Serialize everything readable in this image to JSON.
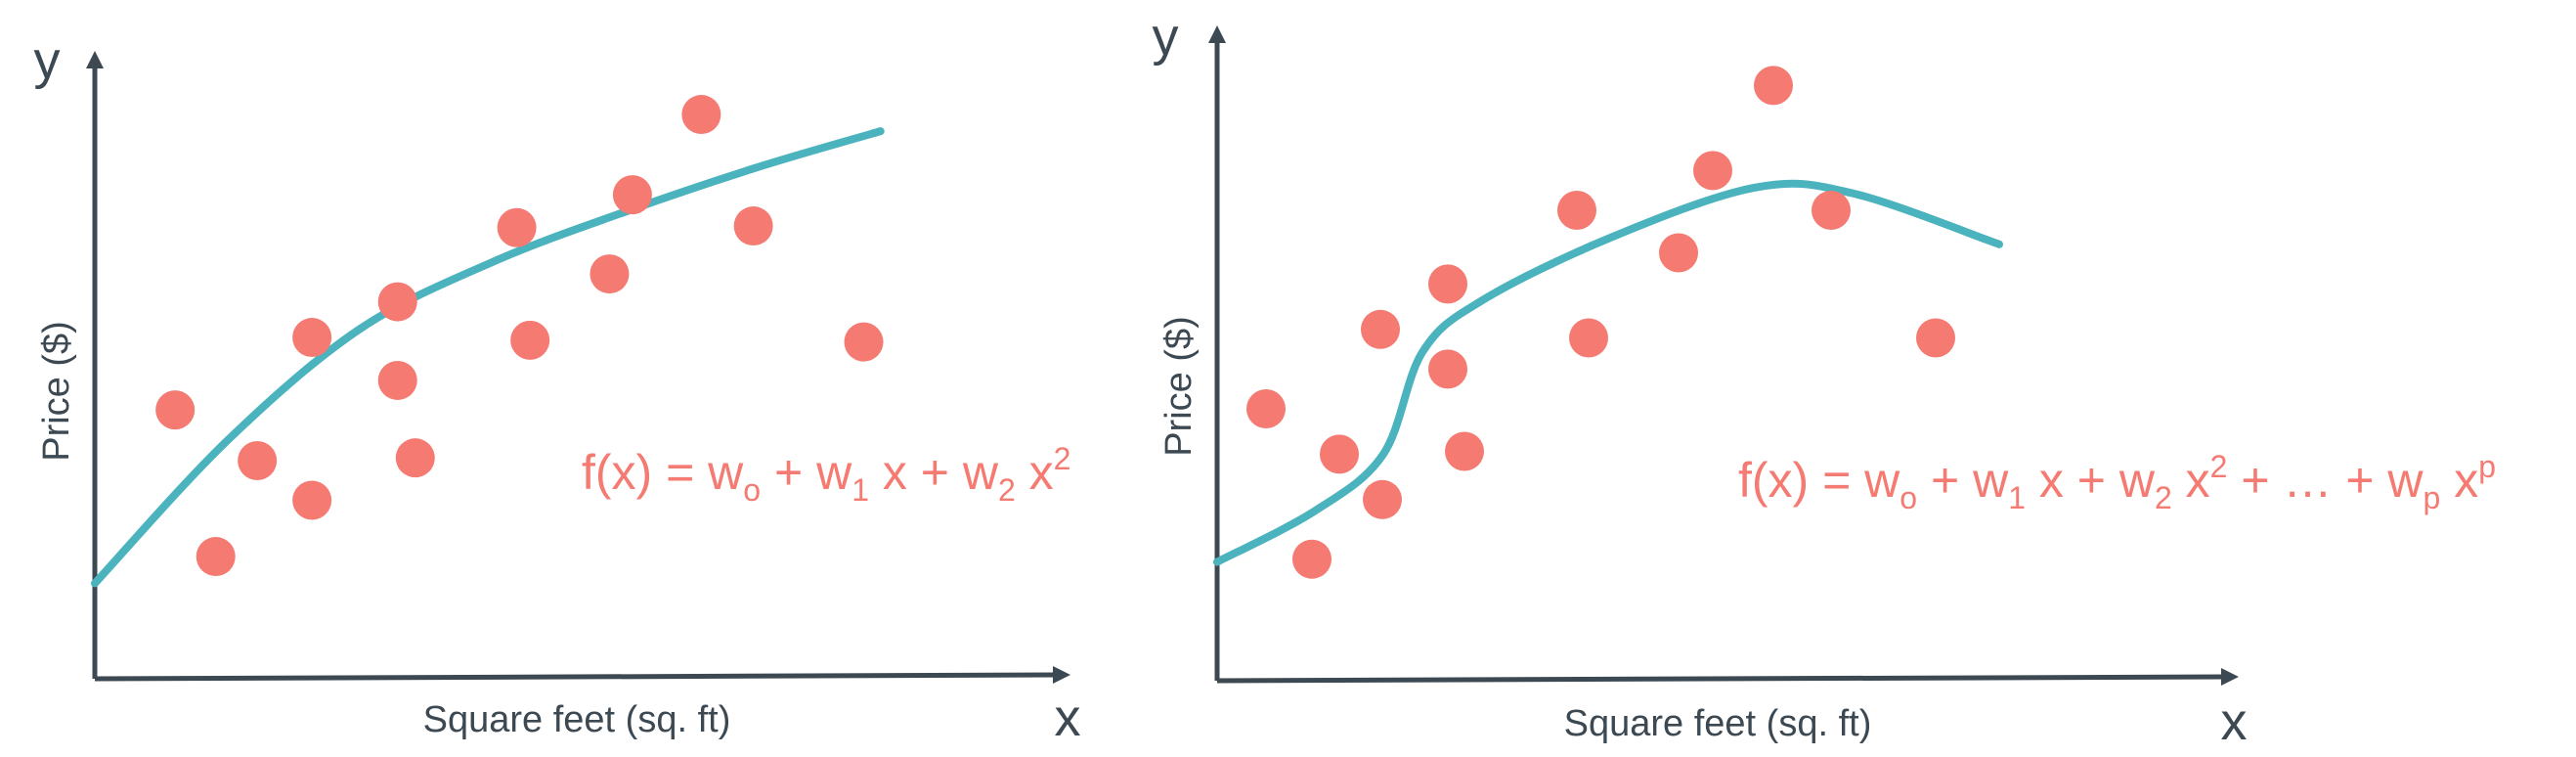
{
  "colors": {
    "axis": "#3c4852",
    "point": "#f47a72",
    "curve": "#4ab3bd",
    "formula": "#f47a72"
  },
  "chart_data": [
    {
      "type": "scatter",
      "title": "",
      "xlabel": "Square feet (sq. ft)",
      "ylabel": "Price ($)",
      "x_axis_letter": "x",
      "y_axis_letter": "y",
      "xlim": [
        0,
        100
      ],
      "ylim": [
        0,
        100
      ],
      "grid": false,
      "formula": {
        "prefix": "f(x) = w",
        "terms": [
          {
            "sub": "o",
            "text": " + w"
          },
          {
            "sub": "1",
            "text": " x + w"
          },
          {
            "sub": "2",
            "text": " x"
          },
          {
            "sup": "2",
            "text": ""
          }
        ]
      },
      "points": [
        {
          "x": 9.1,
          "y": 40.5
        },
        {
          "x": 13.7,
          "y": 14.2
        },
        {
          "x": 18.4,
          "y": 31.4
        },
        {
          "x": 24.6,
          "y": 53.5
        },
        {
          "x": 24.6,
          "y": 24.3
        },
        {
          "x": 34.3,
          "y": 59.9
        },
        {
          "x": 34.3,
          "y": 45.8
        },
        {
          "x": 36.3,
          "y": 31.9
        },
        {
          "x": 47.8,
          "y": 73.2
        },
        {
          "x": 49.3,
          "y": 53.0
        },
        {
          "x": 58.3,
          "y": 64.9
        },
        {
          "x": 60.9,
          "y": 79.1
        },
        {
          "x": 68.7,
          "y": 93.5
        },
        {
          "x": 74.6,
          "y": 73.5
        },
        {
          "x": 87.1,
          "y": 52.7
        }
      ],
      "curve": [
        {
          "x": 0,
          "y": 9.4
        },
        {
          "x": 15,
          "y": 35
        },
        {
          "x": 30,
          "y": 55
        },
        {
          "x": 45,
          "y": 67
        },
        {
          "x": 60,
          "y": 76
        },
        {
          "x": 75,
          "y": 84
        },
        {
          "x": 89,
          "y": 90.5
        }
      ]
    },
    {
      "type": "scatter",
      "title": "",
      "xlabel": "Square feet (sq. ft)",
      "ylabel": "Price ($)",
      "x_axis_letter": "x",
      "y_axis_letter": "y",
      "xlim": [
        0,
        100
      ],
      "ylim": [
        0,
        100
      ],
      "grid": false,
      "formula": {
        "prefix": "f(x) = w",
        "terms": [
          {
            "sub": "o",
            "text": " + w"
          },
          {
            "sub": "1",
            "text": " x + w"
          },
          {
            "sub": "2",
            "text": " x"
          },
          {
            "sup": "2",
            "text": " + … + w"
          },
          {
            "sub": "p",
            "text": " x"
          },
          {
            "sup": "p",
            "text": ""
          }
        ]
      },
      "points": [
        {
          "x": 5.0,
          "y": 40.0
        },
        {
          "x": 9.7,
          "y": 13.5
        },
        {
          "x": 12.5,
          "y": 32.0
        },
        {
          "x": 16.7,
          "y": 54.0
        },
        {
          "x": 16.9,
          "y": 24.0
        },
        {
          "x": 23.6,
          "y": 62.0
        },
        {
          "x": 23.6,
          "y": 47.0
        },
        {
          "x": 25.3,
          "y": 32.5
        },
        {
          "x": 36.8,
          "y": 75.0
        },
        {
          "x": 38.0,
          "y": 52.5
        },
        {
          "x": 47.2,
          "y": 67.5
        },
        {
          "x": 50.7,
          "y": 82.0
        },
        {
          "x": 56.9,
          "y": 97.0
        },
        {
          "x": 62.8,
          "y": 75.0
        },
        {
          "x": 73.5,
          "y": 52.5
        }
      ],
      "curve": [
        {
          "x": 0,
          "y": 13.0
        },
        {
          "x": 10,
          "y": 22.0
        },
        {
          "x": 17,
          "y": 32.0
        },
        {
          "x": 21,
          "y": 50.0
        },
        {
          "x": 27,
          "y": 59.0
        },
        {
          "x": 40,
          "y": 70.0
        },
        {
          "x": 55,
          "y": 79.0
        },
        {
          "x": 65,
          "y": 78.0
        },
        {
          "x": 80,
          "y": 69.0
        }
      ]
    }
  ]
}
